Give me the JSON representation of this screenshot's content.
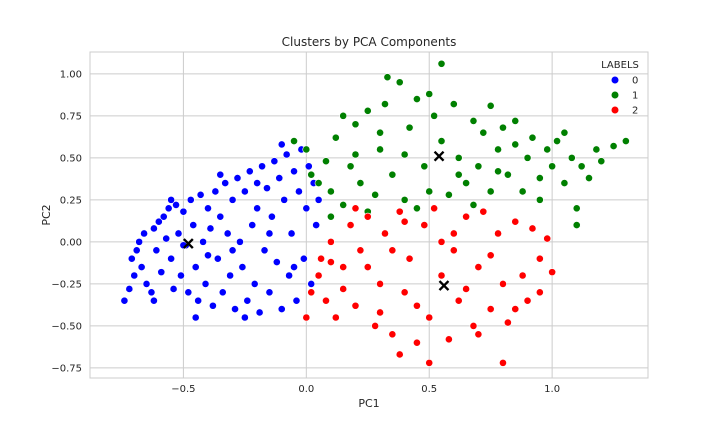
{
  "chart_data": {
    "type": "scatter",
    "title": "Clusters by PCA Components",
    "xlabel": "PC1",
    "ylabel": "PC2",
    "xlim": [
      -0.88,
      1.39
    ],
    "ylim": [
      -0.81,
      1.13
    ],
    "xticks": [
      -0.5,
      0.0,
      0.5,
      1.0
    ],
    "xtick_labels": [
      "−0.5",
      "0.0",
      "0.5",
      "1.0"
    ],
    "yticks": [
      -0.75,
      -0.5,
      -0.25,
      0.0,
      0.25,
      0.5,
      0.75,
      1.0
    ],
    "ytick_labels": [
      "−0.75",
      "−0.50",
      "−0.25",
      "0.00",
      "0.25",
      "0.50",
      "0.75",
      "1.00"
    ],
    "grid": true,
    "background": "#ffffff",
    "grid_color": "#cccccc",
    "legend": {
      "title": "LABELS",
      "placement": "top-right",
      "entries": [
        {
          "label": "0",
          "color": "#0000ff"
        },
        {
          "label": "1",
          "color": "#008000"
        },
        {
          "label": "2",
          "color": "#ff0000"
        }
      ]
    },
    "series": [
      {
        "name": "0",
        "color": "#0000ff",
        "points": [
          [
            -0.74,
            -0.35
          ],
          [
            -0.72,
            -0.28
          ],
          [
            -0.7,
            -0.2
          ],
          [
            -0.71,
            -0.1
          ],
          [
            -0.69,
            -0.05
          ],
          [
            -0.68,
            0.0
          ],
          [
            -0.66,
            0.05
          ],
          [
            -0.67,
            -0.15
          ],
          [
            -0.65,
            -0.25
          ],
          [
            -0.63,
            -0.3
          ],
          [
            -0.62,
            0.08
          ],
          [
            -0.6,
            0.12
          ],
          [
            -0.61,
            -0.05
          ],
          [
            -0.59,
            -0.18
          ],
          [
            -0.58,
            0.15
          ],
          [
            -0.56,
            0.2
          ],
          [
            -0.57,
            0.02
          ],
          [
            -0.55,
            -0.1
          ],
          [
            -0.54,
            -0.28
          ],
          [
            -0.53,
            0.22
          ],
          [
            -0.52,
            0.05
          ],
          [
            -0.51,
            -0.2
          ],
          [
            -0.5,
            0.18
          ],
          [
            -0.49,
            -0.02
          ],
          [
            -0.48,
            -0.3
          ],
          [
            -0.47,
            0.25
          ],
          [
            -0.46,
            0.1
          ],
          [
            -0.45,
            -0.15
          ],
          [
            -0.44,
            -0.35
          ],
          [
            -0.43,
            0.28
          ],
          [
            -0.42,
            0.0
          ],
          [
            -0.41,
            -0.25
          ],
          [
            -0.4,
            0.2
          ],
          [
            -0.39,
            0.08
          ],
          [
            -0.38,
            -0.38
          ],
          [
            -0.37,
            0.3
          ],
          [
            -0.36,
            -0.1
          ],
          [
            -0.35,
            0.15
          ],
          [
            -0.34,
            -0.3
          ],
          [
            -0.33,
            0.35
          ],
          [
            -0.32,
            0.05
          ],
          [
            -0.31,
            -0.2
          ],
          [
            -0.3,
            0.25
          ],
          [
            -0.29,
            -0.4
          ],
          [
            -0.28,
            0.38
          ],
          [
            -0.27,
            0.0
          ],
          [
            -0.26,
            -0.15
          ],
          [
            -0.25,
            0.3
          ],
          [
            -0.24,
            -0.35
          ],
          [
            -0.23,
            0.42
          ],
          [
            -0.22,
            0.1
          ],
          [
            -0.21,
            -0.25
          ],
          [
            -0.2,
            0.2
          ],
          [
            -0.19,
            -0.42
          ],
          [
            -0.18,
            0.45
          ],
          [
            -0.17,
            -0.05
          ],
          [
            -0.16,
            0.32
          ],
          [
            -0.15,
            -0.3
          ],
          [
            -0.14,
            0.15
          ],
          [
            -0.13,
            0.48
          ],
          [
            -0.12,
            -0.12
          ],
          [
            -0.11,
            0.38
          ],
          [
            -0.1,
            -0.4
          ],
          [
            -0.09,
            0.25
          ],
          [
            -0.08,
            0.52
          ],
          [
            -0.07,
            -0.2
          ],
          [
            -0.06,
            0.05
          ],
          [
            -0.05,
            0.42
          ],
          [
            -0.04,
            -0.35
          ],
          [
            -0.03,
            0.3
          ],
          [
            -0.02,
            0.55
          ],
          [
            -0.01,
            -0.1
          ],
          [
            0.0,
            0.2
          ],
          [
            0.01,
            0.45
          ],
          [
            0.02,
            -0.25
          ],
          [
            0.03,
            0.35
          ],
          [
            0.04,
            0.1
          ],
          [
            0.05,
            0.25
          ],
          [
            -0.45,
            -0.45
          ],
          [
            -0.62,
            -0.35
          ],
          [
            -0.55,
            0.25
          ],
          [
            -0.35,
            0.4
          ],
          [
            -0.25,
            -0.45
          ],
          [
            -0.1,
            0.58
          ],
          [
            -0.5,
            -0.02
          ],
          [
            -0.3,
            -0.05
          ],
          [
            -0.15,
            0.05
          ],
          [
            -0.05,
            -0.15
          ],
          [
            -0.2,
            0.35
          ],
          [
            -0.4,
            -0.08
          ]
        ]
      },
      {
        "name": "1",
        "color": "#008000",
        "points": [
          [
            -0.05,
            0.6
          ],
          [
            0.0,
            0.55
          ],
          [
            0.02,
            0.4
          ],
          [
            0.05,
            0.35
          ],
          [
            0.08,
            0.48
          ],
          [
            0.1,
            0.3
          ],
          [
            0.12,
            0.62
          ],
          [
            0.15,
            0.22
          ],
          [
            0.18,
            0.45
          ],
          [
            0.2,
            0.7
          ],
          [
            0.22,
            0.35
          ],
          [
            0.25,
            0.78
          ],
          [
            0.28,
            0.28
          ],
          [
            0.3,
            0.55
          ],
          [
            0.32,
            0.82
          ],
          [
            0.35,
            0.4
          ],
          [
            0.38,
            0.95
          ],
          [
            0.4,
            0.25
          ],
          [
            0.42,
            0.68
          ],
          [
            0.45,
            0.85
          ],
          [
            0.48,
            0.45
          ],
          [
            0.5,
            0.3
          ],
          [
            0.52,
            0.75
          ],
          [
            0.55,
            0.6
          ],
          [
            0.58,
            0.28
          ],
          [
            0.6,
            0.82
          ],
          [
            0.62,
            0.5
          ],
          [
            0.65,
            0.35
          ],
          [
            0.68,
            0.72
          ],
          [
            0.7,
            0.45
          ],
          [
            0.72,
            0.65
          ],
          [
            0.75,
            0.3
          ],
          [
            0.78,
            0.55
          ],
          [
            0.8,
            0.68
          ],
          [
            0.82,
            0.4
          ],
          [
            0.85,
            0.58
          ],
          [
            0.88,
            0.3
          ],
          [
            0.9,
            0.5
          ],
          [
            0.92,
            0.62
          ],
          [
            0.95,
            0.38
          ],
          [
            0.98,
            0.55
          ],
          [
            1.0,
            0.45
          ],
          [
            1.02,
            0.6
          ],
          [
            1.05,
            0.35
          ],
          [
            1.08,
            0.5
          ],
          [
            1.1,
            0.2
          ],
          [
            1.12,
            0.45
          ],
          [
            1.15,
            0.38
          ],
          [
            1.18,
            0.55
          ],
          [
            1.2,
            0.48
          ],
          [
            1.25,
            0.57
          ],
          [
            1.3,
            0.6
          ],
          [
            0.55,
            1.06
          ],
          [
            0.33,
            0.98
          ],
          [
            0.75,
            0.81
          ],
          [
            0.1,
            0.15
          ],
          [
            0.25,
            0.18
          ],
          [
            0.45,
            0.2
          ],
          [
            0.68,
            0.22
          ],
          [
            0.95,
            0.25
          ],
          [
            1.1,
            0.1
          ],
          [
            0.15,
            0.75
          ],
          [
            0.3,
            0.65
          ],
          [
            0.5,
            0.88
          ],
          [
            0.85,
            0.72
          ],
          [
            1.05,
            0.65
          ],
          [
            0.4,
            0.52
          ],
          [
            0.62,
            0.4
          ],
          [
            0.78,
            0.42
          ],
          [
            0.2,
            0.52
          ]
        ]
      },
      {
        "name": "2",
        "color": "#ff0000",
        "points": [
          [
            0.02,
            -0.3
          ],
          [
            0.05,
            -0.2
          ],
          [
            0.06,
            -0.1
          ],
          [
            0.08,
            -0.35
          ],
          [
            0.1,
            0.0
          ],
          [
            0.12,
            -0.45
          ],
          [
            0.15,
            -0.15
          ],
          [
            0.18,
            0.1
          ],
          [
            0.2,
            -0.38
          ],
          [
            0.22,
            -0.05
          ],
          [
            0.25,
            0.15
          ],
          [
            0.28,
            -0.5
          ],
          [
            0.3,
            -0.25
          ],
          [
            0.32,
            0.05
          ],
          [
            0.35,
            -0.55
          ],
          [
            0.38,
            0.18
          ],
          [
            0.4,
            -0.3
          ],
          [
            0.42,
            -0.1
          ],
          [
            0.45,
            -0.6
          ],
          [
            0.48,
            0.1
          ],
          [
            0.5,
            -0.45
          ],
          [
            0.52,
            0.2
          ],
          [
            0.55,
            -0.2
          ],
          [
            0.58,
            -0.58
          ],
          [
            0.6,
            0.05
          ],
          [
            0.62,
            -0.35
          ],
          [
            0.65,
            0.15
          ],
          [
            0.68,
            -0.5
          ],
          [
            0.7,
            -0.15
          ],
          [
            0.72,
            0.18
          ],
          [
            0.75,
            -0.4
          ],
          [
            0.78,
            0.05
          ],
          [
            0.8,
            -0.25
          ],
          [
            0.82,
            -0.48
          ],
          [
            0.85,
            0.12
          ],
          [
            0.88,
            -0.2
          ],
          [
            0.9,
            -0.35
          ],
          [
            0.92,
            0.08
          ],
          [
            0.95,
            -0.1
          ],
          [
            0.98,
            0.02
          ],
          [
            1.0,
            -0.18
          ],
          [
            0.5,
            -0.72
          ],
          [
            0.8,
            -0.72
          ],
          [
            0.38,
            -0.67
          ],
          [
            0.0,
            -0.45
          ],
          [
            0.2,
            0.2
          ],
          [
            0.4,
            0.12
          ],
          [
            0.6,
            -0.05
          ],
          [
            0.25,
            -0.15
          ],
          [
            0.45,
            -0.38
          ],
          [
            0.65,
            -0.28
          ],
          [
            0.35,
            -0.05
          ],
          [
            0.15,
            -0.28
          ],
          [
            0.55,
            0.0
          ],
          [
            0.75,
            -0.08
          ],
          [
            0.1,
            -0.12
          ],
          [
            0.3,
            -0.42
          ],
          [
            0.7,
            -0.55
          ],
          [
            0.85,
            -0.4
          ],
          [
            0.95,
            -0.3
          ]
        ]
      }
    ],
    "centroids": {
      "color": "#000000",
      "marker": "x",
      "points": [
        [
          -0.48,
          -0.01
        ],
        [
          0.54,
          0.51
        ],
        [
          0.56,
          -0.26
        ]
      ]
    }
  }
}
